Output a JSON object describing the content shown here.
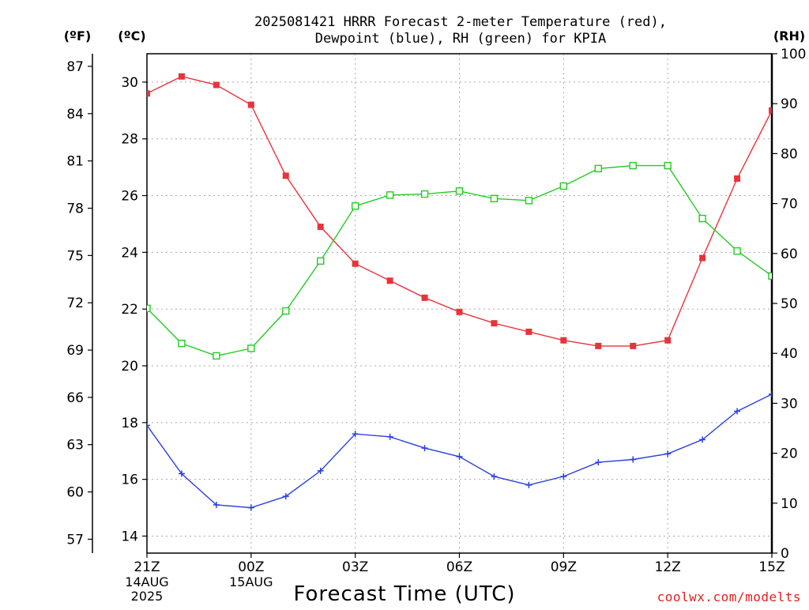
{
  "chart_data": {
    "type": "line",
    "title_line1": "2025081421 HRRR Forecast 2-meter Temperature (red),",
    "title_line2": "Dewpoint (blue), RH (green) for KPIA",
    "xlabel": "Forecast Time (UTC)",
    "credit": "coolwx.com/modelts",
    "left_unit_f": "(ºF)",
    "left_unit_c": "(ºC)",
    "right_unit": "(RH)",
    "x_hours": [
      0,
      1,
      2,
      3,
      4,
      5,
      6,
      7,
      8,
      9,
      10,
      11,
      12,
      13,
      14,
      15,
      16,
      17,
      18
    ],
    "x_ticks": [
      {
        "hour": 0,
        "label": "21Z",
        "sub1": "14AUG",
        "sub2": "2025"
      },
      {
        "hour": 3,
        "label": "00Z",
        "sub1": "15AUG",
        "sub2": ""
      },
      {
        "hour": 6,
        "label": "03Z",
        "sub1": "",
        "sub2": ""
      },
      {
        "hour": 9,
        "label": "06Z",
        "sub1": "",
        "sub2": ""
      },
      {
        "hour": 12,
        "label": "09Z",
        "sub1": "",
        "sub2": ""
      },
      {
        "hour": 15,
        "label": "12Z",
        "sub1": "",
        "sub2": ""
      },
      {
        "hour": 18,
        "label": "15Z",
        "sub1": "",
        "sub2": ""
      }
    ],
    "celsius_axis": {
      "min": 13.4,
      "max": 31.0,
      "ticks": [
        14,
        16,
        18,
        20,
        22,
        24,
        26,
        28,
        30
      ]
    },
    "fahrenheit_ticks": [
      57,
      60,
      63,
      66,
      69,
      72,
      75,
      78,
      81,
      84,
      87
    ],
    "rh_axis": {
      "min": 0,
      "max": 100,
      "ticks": [
        0,
        10,
        20,
        30,
        40,
        50,
        60,
        70,
        80,
        90,
        100
      ]
    },
    "grid": true,
    "series": [
      {
        "name": "2-meter Temperature (red)",
        "axis": "celsius",
        "color": "#e8333a",
        "marker": "filled-square",
        "values": [
          29.6,
          30.2,
          29.9,
          29.2,
          26.7,
          24.9,
          23.6,
          23.0,
          22.4,
          21.9,
          21.5,
          21.2,
          20.9,
          20.7,
          20.7,
          20.9,
          23.8,
          26.6,
          29.0
        ]
      },
      {
        "name": "Dewpoint (blue)",
        "axis": "celsius",
        "color": "#2a3fe0",
        "marker": "plus",
        "values": [
          17.9,
          16.2,
          15.1,
          15.0,
          15.4,
          16.3,
          17.6,
          17.5,
          17.1,
          16.8,
          16.1,
          15.8,
          16.1,
          16.6,
          16.7,
          16.9,
          17.4,
          18.4,
          19.0
        ]
      },
      {
        "name": "RH (green)",
        "axis": "rh",
        "color": "#22cc22",
        "marker": "open-square",
        "values": [
          49,
          42,
          39.5,
          41,
          48.5,
          58.5,
          69.5,
          71.7,
          71.9,
          72.5,
          71.0,
          70.6,
          73.5,
          77.0,
          77.6,
          77.6,
          67.0,
          60.5,
          55.5
        ]
      }
    ]
  }
}
